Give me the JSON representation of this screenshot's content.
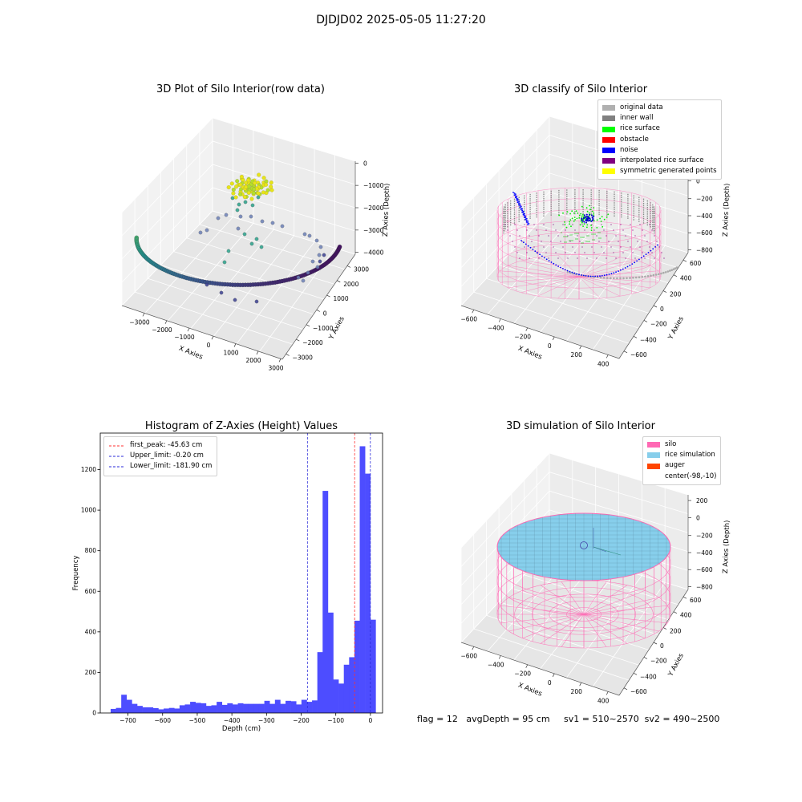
{
  "suptitle": "DJDJD02 2025-05-05 11:27:20",
  "footer": "flag = 12   avgDepth = 95 cm     sv1 = 510~2570  sv2 = 490~2500",
  "colors": {
    "hist": "#4d4dff",
    "first_peak": "#ff3030",
    "limits": "#2b2bd9",
    "silo": "#ff69b4",
    "rice": "#87ceeb"
  },
  "chart_data": [
    {
      "type": "scatter",
      "projection": "3d",
      "title": "3D Plot of Silo Interior(row data)",
      "xlabel": "X Axies",
      "ylabel": "Y Axies",
      "zlabel": "Z Axies (Depth)",
      "xticks": [
        "−3000",
        "−2000",
        "−1000",
        "0",
        "1000",
        "2000",
        "3000"
      ],
      "yticks": [
        "−3000",
        "−2000",
        "−1000",
        "0",
        "1000",
        "2000",
        "3000"
      ],
      "zticks": [
        "0",
        "−1000",
        "−2000",
        "−3000",
        "−4000"
      ],
      "xlim": [
        -3500,
        3500
      ],
      "ylim": [
        -3500,
        3500
      ],
      "zlim": [
        -4500,
        0
      ],
      "colormap": "viridis"
    },
    {
      "type": "scatter",
      "projection": "3d",
      "title": "3D classify of Silo Interior",
      "ylabel": "Y Axies",
      "xlabel": "X Axies",
      "zlabel": "Z Axies (Depth)",
      "xticks": [
        "−600",
        "−400",
        "−200",
        "0",
        "200",
        "400"
      ],
      "yticks": [
        "−600",
        "−400",
        "−200",
        "0",
        "200",
        "400",
        "600"
      ],
      "zticks": [
        "200",
        "0",
        "−200",
        "−400",
        "−600",
        "−800"
      ],
      "xlim": [
        -700,
        500
      ],
      "ylim": [
        -600,
        600
      ],
      "zlim": [
        -900,
        200
      ],
      "legend_position": "upper right",
      "legend": [
        {
          "label": "original data",
          "color": "#b0b0b0"
        },
        {
          "label": "inner wall",
          "color": "#808080"
        },
        {
          "label": "rice surface",
          "color": "#00ff00"
        },
        {
          "label": "obstacle",
          "color": "#ff0000"
        },
        {
          "label": "noise",
          "color": "#0000ff"
        },
        {
          "label": "interpolated rice surface",
          "color": "#800080"
        },
        {
          "label": "symmetric generated points",
          "color": "#ffff00"
        }
      ]
    },
    {
      "type": "bar",
      "title": "Histogram of Z-Axies (Height) Values",
      "xlabel": "Depth (cm)",
      "ylabel": "Frequency",
      "xlim": [
        -780,
        35
      ],
      "ylim": [
        0,
        1380
      ],
      "xticks": [
        -700,
        -600,
        -500,
        -400,
        -300,
        -200,
        -100,
        0
      ],
      "yticks": [
        0,
        200,
        400,
        600,
        800,
        1000,
        1200
      ],
      "bin_start": -750,
      "bin_width": 15.3,
      "values": [
        20,
        25,
        90,
        65,
        45,
        35,
        28,
        28,
        24,
        18,
        22,
        25,
        22,
        38,
        42,
        55,
        50,
        48,
        35,
        38,
        55,
        40,
        48,
        42,
        48,
        45,
        45,
        45,
        45,
        60,
        45,
        65,
        45,
        60,
        58,
        42,
        65,
        55,
        62,
        300,
        1095,
        495,
        165,
        145,
        238,
        275,
        455,
        1315,
        1180,
        460
      ],
      "legend_position": "upper left",
      "vlines": [
        {
          "label": "first_peak: -45.63 cm",
          "x": -45.63,
          "color": "#ff3030"
        },
        {
          "label": "Upper_limit: -0.20 cm",
          "x": -0.2,
          "color": "#2b2bd9"
        },
        {
          "label": "Lower_limit: -181.90 cm",
          "x": -181.9,
          "color": "#2b2bd9"
        }
      ]
    },
    {
      "type": "surface",
      "projection": "3d",
      "title": "3D simulation of Silo Interior",
      "xlabel": "X Axies",
      "ylabel": "Y Axies",
      "zlabel": "Z Axies (Depth)",
      "xticks": [
        "−600",
        "−400",
        "−200",
        "0",
        "200",
        "400"
      ],
      "yticks": [
        "−600",
        "−400",
        "−200",
        "0",
        "200",
        "400",
        "600"
      ],
      "zticks": [
        "200",
        "0",
        "−200",
        "−400",
        "−600",
        "−800"
      ],
      "legend_position": "upper right",
      "legend": [
        {
          "label": "silo",
          "color": "#ff69b4"
        },
        {
          "label": "rice simulation",
          "color": "#87ceeb"
        },
        {
          "label": "auger",
          "color": "#ff4500"
        },
        {
          "label": "center(-98,-10)",
          "color": ""
        }
      ]
    }
  ]
}
